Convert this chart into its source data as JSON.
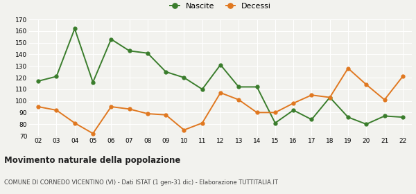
{
  "years": [
    "02",
    "03",
    "04",
    "05",
    "06",
    "07",
    "08",
    "09",
    "10",
    "11",
    "12",
    "13",
    "14",
    "15",
    "16",
    "17",
    "18",
    "19",
    "20",
    "21",
    "22"
  ],
  "nascite": [
    117,
    121,
    162,
    116,
    153,
    143,
    141,
    125,
    120,
    110,
    131,
    112,
    112,
    81,
    92,
    84,
    103,
    86,
    80,
    87,
    86
  ],
  "decessi": [
    95,
    92,
    81,
    72,
    95,
    93,
    89,
    88,
    75,
    81,
    107,
    101,
    90,
    90,
    98,
    105,
    103,
    128,
    114,
    101,
    121
  ],
  "nascite_color": "#3a7d2c",
  "decessi_color": "#e07820",
  "background_color": "#f2f2ee",
  "grid_color": "#ffffff",
  "ylim": [
    70,
    170
  ],
  "yticks": [
    70,
    80,
    90,
    100,
    110,
    120,
    130,
    140,
    150,
    160,
    170
  ],
  "title": "Movimento naturale della popolazione",
  "subtitle": "COMUNE DI CORNEDO VICENTINO (VI) - Dati ISTAT (1 gen-31 dic) - Elaborazione TUTTITALIA.IT",
  "legend_labels": [
    "Nascite",
    "Decessi"
  ],
  "marker_size": 3.5,
  "line_width": 1.4
}
